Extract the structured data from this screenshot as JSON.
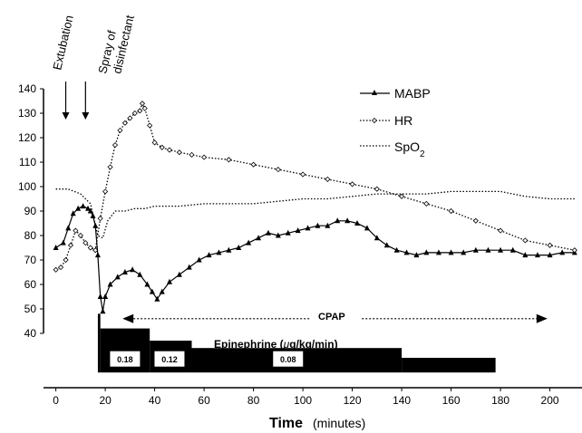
{
  "chart_data": {
    "type": "line",
    "xlabel": "Time",
    "xlabel_unit": "(minutes)",
    "xlim": [
      -5,
      213
    ],
    "ylim": [
      40,
      140
    ],
    "x_ticks": [
      0,
      20,
      40,
      60,
      80,
      100,
      120,
      140,
      160,
      180,
      200
    ],
    "y_ticks": [
      40,
      50,
      60,
      70,
      80,
      90,
      100,
      110,
      120,
      130,
      140
    ],
    "grid": false,
    "legend_position": "top-right",
    "series": [
      {
        "name": "MABP",
        "marker": "filled-triangle",
        "line": "solid",
        "points": [
          [
            0,
            75
          ],
          [
            3,
            77
          ],
          [
            5,
            83
          ],
          [
            7,
            89
          ],
          [
            9,
            91
          ],
          [
            11,
            92
          ],
          [
            13,
            91
          ],
          [
            14,
            90
          ],
          [
            15,
            88
          ],
          [
            16,
            84
          ],
          [
            17,
            72
          ],
          [
            18,
            55
          ],
          [
            19,
            49
          ],
          [
            20,
            55
          ],
          [
            22,
            60
          ],
          [
            25,
            63
          ],
          [
            28,
            65
          ],
          [
            31,
            66
          ],
          [
            34,
            64
          ],
          [
            37,
            60
          ],
          [
            39,
            57
          ],
          [
            41,
            54
          ],
          [
            43,
            57
          ],
          [
            46,
            61
          ],
          [
            50,
            64
          ],
          [
            54,
            67
          ],
          [
            58,
            70
          ],
          [
            62,
            72
          ],
          [
            66,
            73
          ],
          [
            70,
            74
          ],
          [
            74,
            75
          ],
          [
            78,
            77
          ],
          [
            82,
            79
          ],
          [
            86,
            81
          ],
          [
            90,
            80
          ],
          [
            94,
            81
          ],
          [
            98,
            82
          ],
          [
            102,
            83
          ],
          [
            106,
            84
          ],
          [
            110,
            84
          ],
          [
            114,
            86
          ],
          [
            118,
            86
          ],
          [
            122,
            85
          ],
          [
            126,
            83
          ],
          [
            130,
            79
          ],
          [
            134,
            76
          ],
          [
            138,
            74
          ],
          [
            142,
            73
          ],
          [
            146,
            72
          ],
          [
            150,
            73
          ],
          [
            155,
            73
          ],
          [
            160,
            73
          ],
          [
            165,
            73
          ],
          [
            170,
            74
          ],
          [
            175,
            74
          ],
          [
            180,
            74
          ],
          [
            185,
            74
          ],
          [
            190,
            72
          ],
          [
            195,
            72
          ],
          [
            200,
            72
          ],
          [
            205,
            73
          ],
          [
            210,
            73
          ]
        ]
      },
      {
        "name": "HR",
        "marker": "open-diamond",
        "line": "dotted",
        "points": [
          [
            0,
            66
          ],
          [
            2,
            67
          ],
          [
            4,
            70
          ],
          [
            6,
            76
          ],
          [
            8,
            82
          ],
          [
            10,
            80
          ],
          [
            12,
            77
          ],
          [
            14,
            75
          ],
          [
            16,
            74
          ],
          [
            18,
            87
          ],
          [
            20,
            98
          ],
          [
            22,
            108
          ],
          [
            24,
            117
          ],
          [
            26,
            123
          ],
          [
            28,
            126
          ],
          [
            30,
            128
          ],
          [
            32,
            130
          ],
          [
            34,
            131
          ],
          [
            35,
            134
          ],
          [
            36,
            132
          ],
          [
            38,
            125
          ],
          [
            40,
            118
          ],
          [
            43,
            116
          ],
          [
            46,
            115
          ],
          [
            50,
            114
          ],
          [
            55,
            113
          ],
          [
            60,
            112
          ],
          [
            70,
            111
          ],
          [
            80,
            109
          ],
          [
            90,
            107
          ],
          [
            100,
            105
          ],
          [
            110,
            103
          ],
          [
            120,
            101
          ],
          [
            130,
            99
          ],
          [
            140,
            96
          ],
          [
            150,
            93
          ],
          [
            160,
            90
          ],
          [
            170,
            86
          ],
          [
            180,
            82
          ],
          [
            190,
            78
          ],
          [
            200,
            76
          ],
          [
            210,
            74
          ]
        ]
      },
      {
        "name": "SpO",
        "name_subscript": "2",
        "marker": "none",
        "line": "dotted",
        "points": [
          [
            0,
            99
          ],
          [
            5,
            99
          ],
          [
            10,
            97
          ],
          [
            14,
            93
          ],
          [
            17,
            80
          ],
          [
            19,
            79
          ],
          [
            21,
            86
          ],
          [
            24,
            90
          ],
          [
            28,
            90
          ],
          [
            32,
            91
          ],
          [
            36,
            91
          ],
          [
            40,
            92
          ],
          [
            50,
            92
          ],
          [
            60,
            93
          ],
          [
            70,
            93
          ],
          [
            80,
            93
          ],
          [
            90,
            94
          ],
          [
            100,
            95
          ],
          [
            110,
            95
          ],
          [
            120,
            96
          ],
          [
            130,
            97
          ],
          [
            140,
            97
          ],
          [
            150,
            97
          ],
          [
            160,
            98
          ],
          [
            170,
            98
          ],
          [
            180,
            98
          ],
          [
            190,
            96
          ],
          [
            200,
            95
          ],
          [
            210,
            95
          ]
        ]
      }
    ],
    "epinephrine": {
      "label": "Epinephrine (μg/kg/min)",
      "label_pre": "Epinephrine (",
      "label_mu": "μ",
      "label_post": "g/kg/min)",
      "segments": [
        {
          "start": 17,
          "end": 18,
          "top": 48
        },
        {
          "start": 18,
          "end": 38,
          "top": 42
        },
        {
          "start": 38,
          "end": 55,
          "top": 37
        },
        {
          "start": 55,
          "end": 140,
          "top": 34
        },
        {
          "start": 140,
          "end": 178,
          "top": 30
        }
      ],
      "baseline": 24,
      "rate_labels": [
        {
          "x": 28,
          "text": "0.18"
        },
        {
          "x": 46,
          "text": "0.12"
        },
        {
          "x": 94,
          "text": "0.08"
        }
      ]
    },
    "cpap": {
      "label": "CPAP",
      "start": 27,
      "end": 199,
      "y": 46
    },
    "events": [
      {
        "label": "Extubation",
        "x": 4
      },
      {
        "label_line1": "Spray of",
        "label_line2": "disinfectant",
        "x": 12
      }
    ]
  },
  "colors": {
    "foreground": "#000000",
    "background": "#ffffff",
    "box_fill": "#ffffff"
  }
}
